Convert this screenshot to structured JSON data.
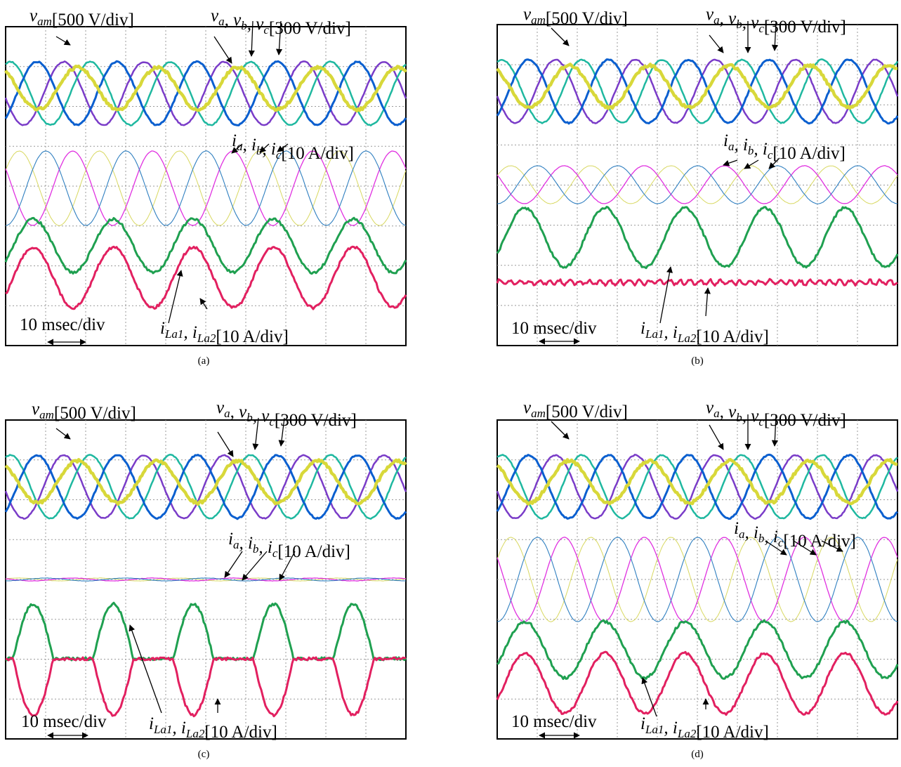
{
  "figure": {
    "panels": [
      {
        "caption": "(a)",
        "labels": {
          "vam": [
            [
              "v",
              "am"
            ],
            [
              "[500 V/div]"
            ]
          ],
          "v": [
            [
              "v",
              "a"
            ],
            [
              ", v",
              "b"
            ],
            [
              ", v",
              "c"
            ],
            [
              "[300 V/div]"
            ]
          ],
          "i": [
            [
              "i",
              "a"
            ],
            [
              ", i",
              "b"
            ],
            [
              ", i",
              "c"
            ],
            [
              "[10 A/div]"
            ]
          ],
          "iL": [
            [
              "i",
              "La1"
            ],
            [
              ", i",
              "La2"
            ],
            [
              "[10 A/div]"
            ]
          ],
          "time": [
            [
              "10 msec/div"
            ]
          ]
        }
      },
      {
        "caption": "(b)",
        "labels": {
          "vam": [
            [
              "v",
              "am"
            ],
            [
              "[500 V/div]"
            ]
          ],
          "v": [
            [
              "v",
              "a"
            ],
            [
              ", v",
              "b"
            ],
            [
              ", v",
              "c"
            ],
            [
              "[300 V/div]"
            ]
          ],
          "i": [
            [
              "i",
              "a"
            ],
            [
              ", i",
              "b"
            ],
            [
              ", i",
              "c"
            ],
            [
              "[10 A/div]"
            ]
          ],
          "iL": [
            [
              "i",
              "La1"
            ],
            [
              ", i",
              "La2"
            ],
            [
              "[10 A/div]"
            ]
          ],
          "time": [
            [
              "10 msec/div"
            ]
          ]
        }
      },
      {
        "caption": "(c)",
        "labels": {
          "vam": [
            [
              "v",
              "am"
            ],
            [
              "[500 V/div]"
            ]
          ],
          "v": [
            [
              "v",
              "a"
            ],
            [
              ", v",
              "b"
            ],
            [
              ", v",
              "c"
            ],
            [
              "[300 V/div]"
            ]
          ],
          "i": [
            [
              "i",
              "a"
            ],
            [
              ", i",
              "b"
            ],
            [
              ", i",
              "c"
            ],
            [
              "[10 A/div]"
            ]
          ],
          "iL": [
            [
              "i",
              "La1"
            ],
            [
              ", i",
              "La2"
            ],
            [
              "[10 A/div]"
            ]
          ],
          "time": [
            [
              "10 msec/div"
            ]
          ]
        }
      },
      {
        "caption": "(d)",
        "labels": {
          "vam": [
            [
              "v",
              "am"
            ],
            [
              "[500 V/div]"
            ]
          ],
          "v": [
            [
              "v",
              "a"
            ],
            [
              ", v",
              "b"
            ],
            [
              ", v",
              "c"
            ],
            [
              "[300 V/div]"
            ]
          ],
          "i": [
            [
              "i",
              "a"
            ],
            [
              ", i",
              "b"
            ],
            [
              ", i",
              "c"
            ],
            [
              "[10 A/div]"
            ]
          ],
          "iL": [
            [
              "i",
              "La1"
            ],
            [
              ", i",
              "La2"
            ],
            [
              "[10 A/div]"
            ]
          ],
          "time": [
            [
              "10 msec/div"
            ]
          ]
        }
      }
    ]
  }
}
